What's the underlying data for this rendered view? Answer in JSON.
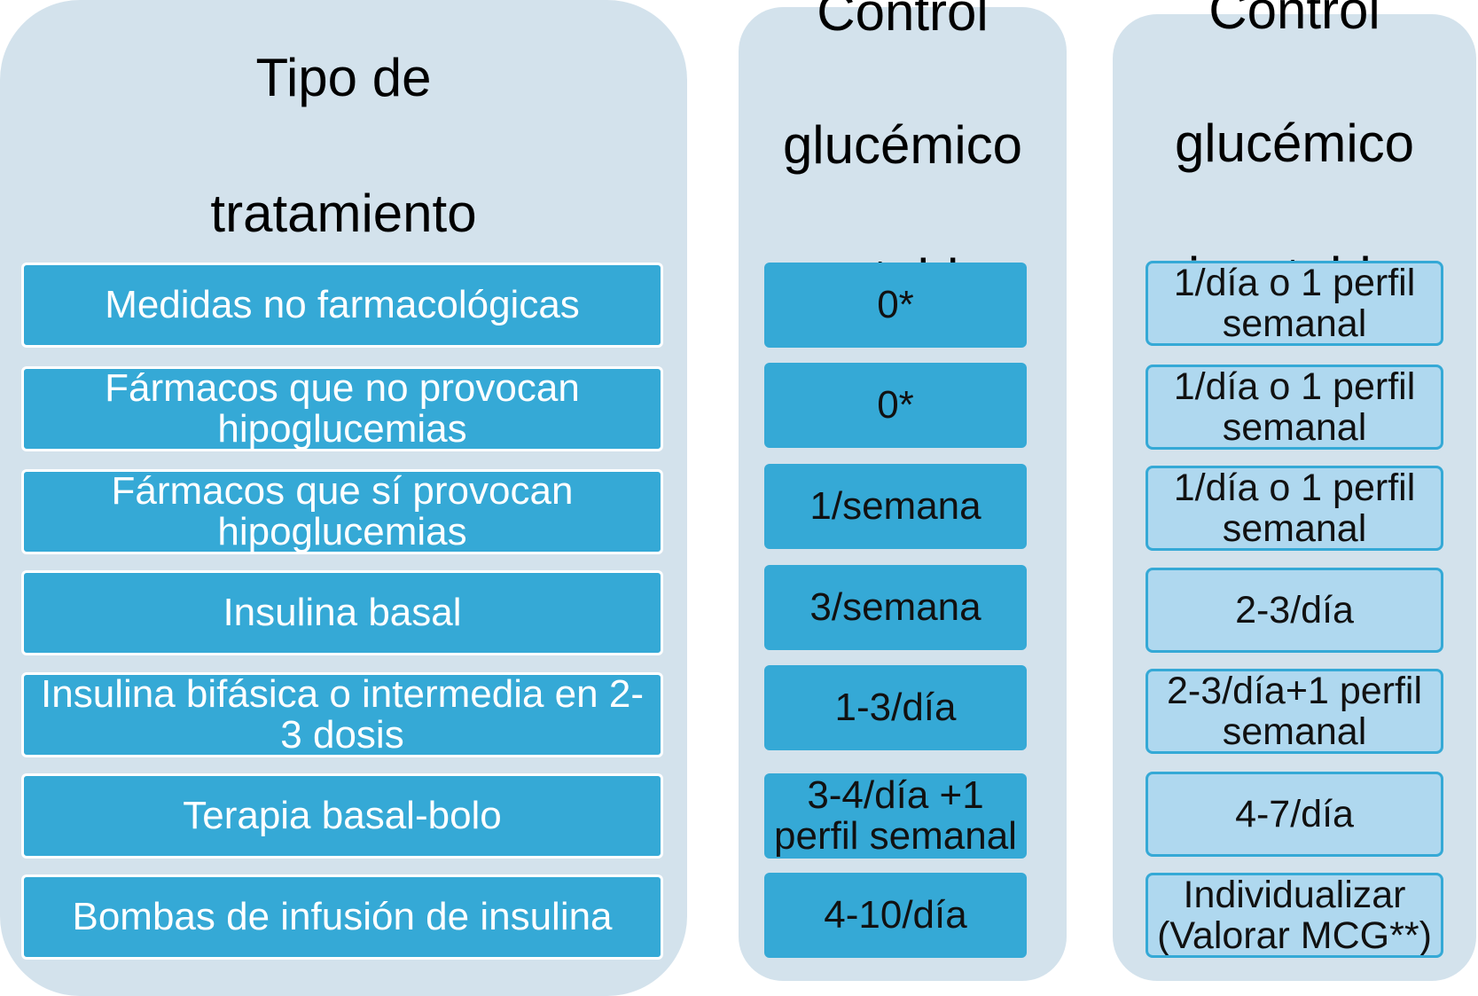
{
  "treatment": {
    "title_line1": "Tipo de",
    "title_line2": "tratamiento",
    "items": [
      "Medidas no farmacológicas",
      "Fármacos que no provocan hipoglucemias",
      "Fármacos que sí provocan hipoglucemias",
      "Insulina basal",
      "Insulina bifásica o intermedia en 2-3 dosis",
      "Terapia basal-bolo",
      "Bombas de infusión de insulina"
    ]
  },
  "stable": {
    "title_line1": "Control",
    "title_line2": "glucémico",
    "title_line3": "estable",
    "items": [
      "0*",
      "0*",
      "1/semana",
      "3/semana",
      "1-3/día",
      "3-4/día +1 perfil semanal",
      "4-10/día"
    ]
  },
  "unstable": {
    "title_line1": "Control",
    "title_line2": "glucémico",
    "title_line3": "inestable",
    "items": [
      "1/día o 1 perfil semanal",
      "1/día o 1 perfil semanal",
      "1/día o 1 perfil semanal",
      "2-3/día",
      "2-3/día+1 perfil semanal",
      "4-7/día",
      "Individualizar (Valorar MCG**)"
    ]
  },
  "colors": {
    "panel_bg": "#d3e2ec",
    "cell_blue": "#35a9d6",
    "cell_light": "#afd8ef"
  }
}
